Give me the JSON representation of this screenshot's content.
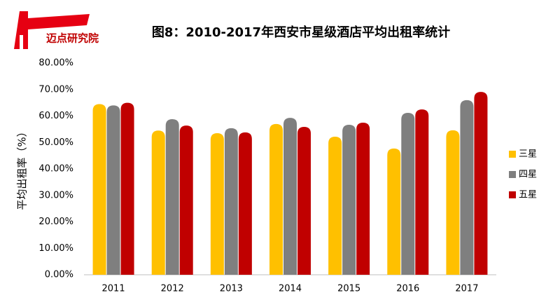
{
  "logo_text": "迈点研究院",
  "chart_data": {
    "type": "bar",
    "title": "图8：2010-2017年西安市星级酒店平均出租率统计",
    "y_label": "平均出租率（%）",
    "categories": [
      "2011",
      "2012",
      "2013",
      "2014",
      "2015",
      "2016",
      "2017"
    ],
    "series": [
      {
        "name": "三星",
        "color": "#ffc000",
        "values": [
          64.5,
          54.5,
          53.5,
          57,
          52.2,
          47.7,
          54.6
        ]
      },
      {
        "name": "四星",
        "color": "#7f7f7f",
        "values": [
          64,
          58.8,
          55.4,
          59.3,
          56.7,
          61.2,
          66
        ]
      },
      {
        "name": "五星",
        "color": "#c00000",
        "values": [
          65,
          56.4,
          53.8,
          55.9,
          57.5,
          62.5,
          69.1
        ]
      }
    ],
    "ylim": [
      0,
      80
    ],
    "yticks": [
      {
        "value": 0,
        "label": "0.00%"
      },
      {
        "value": 10,
        "label": "10.00%"
      },
      {
        "value": 20,
        "label": "20.00%"
      },
      {
        "value": 30,
        "label": "30.00%"
      },
      {
        "value": 40,
        "label": "40.00%"
      },
      {
        "value": 50,
        "label": "50.00%"
      },
      {
        "value": 60,
        "label": "60.00%"
      },
      {
        "value": 70,
        "label": "70.00%"
      },
      {
        "value": 80,
        "label": "80.00%"
      }
    ],
    "legend": "right"
  }
}
